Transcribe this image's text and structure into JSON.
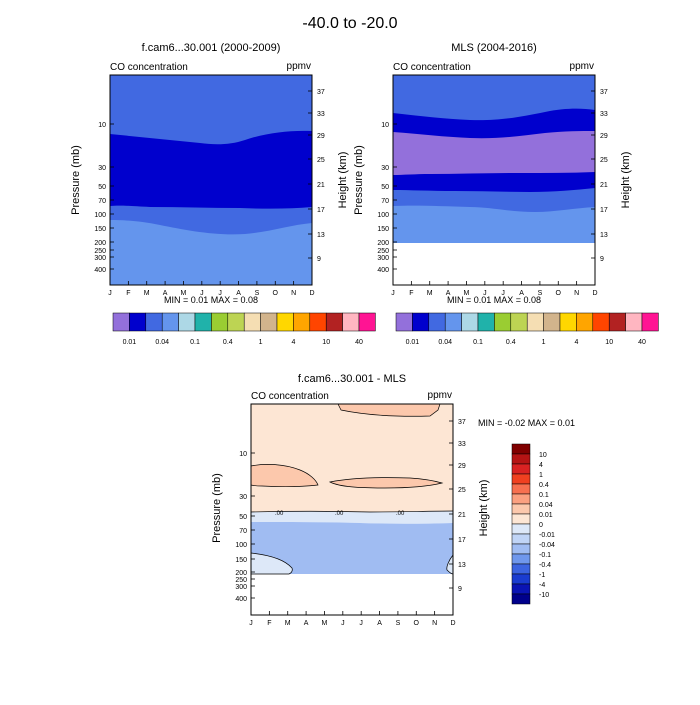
{
  "main_title": "-40.0 to -20.0",
  "chart_data": [
    {
      "type": "heatmap",
      "title": "f.cam6...30.001 (2000-2009)",
      "left_string": "CO concentration",
      "right_string": "ppmv",
      "xlabel": "",
      "ylabel": "Pressure (mb)",
      "ylabel_right": "Height (km)",
      "x_ticks": [
        "J",
        "F",
        "M",
        "A",
        "M",
        "J",
        "J",
        "A",
        "S",
        "O",
        "N",
        "D"
      ],
      "y_ticks": [
        "10",
        "30",
        "50",
        "70",
        "100",
        "150",
        "200",
        "250",
        "300",
        "400"
      ],
      "y_right_ticks": [
        "37",
        "33",
        "29",
        "25",
        "21",
        "17",
        "13",
        "9"
      ],
      "stats": "MIN =  0.01  MAX =  0.08",
      "colorbar_labels": [
        "0.01",
        "0.04",
        "0.1",
        "0.4",
        "1",
        "4",
        "10",
        "40"
      ]
    },
    {
      "type": "heatmap",
      "title": "MLS (2004-2016)",
      "left_string": "CO concentration",
      "right_string": "ppmv",
      "xlabel": "",
      "ylabel": "Pressure (mb)",
      "ylabel_right": "Height (km)",
      "x_ticks": [
        "J",
        "F",
        "M",
        "A",
        "M",
        "J",
        "J",
        "A",
        "S",
        "O",
        "N",
        "D"
      ],
      "y_ticks": [
        "10",
        "30",
        "50",
        "70",
        "100",
        "150",
        "200",
        "250",
        "300",
        "400"
      ],
      "y_right_ticks": [
        "37",
        "33",
        "29",
        "25",
        "21",
        "17",
        "13",
        "9"
      ],
      "stats": "MIN =  0.01  MAX =  0.08",
      "colorbar_labels": [
        "0.01",
        "0.04",
        "0.1",
        "0.4",
        "1",
        "4",
        "10",
        "40"
      ]
    },
    {
      "type": "heatmap",
      "title": "f.cam6...30.001 - MLS",
      "left_string": "CO concentration",
      "right_string": "ppmv",
      "xlabel": "",
      "ylabel": "Pressure (mb)",
      "ylabel_right": "Height (km)",
      "x_ticks": [
        "J",
        "F",
        "M",
        "A",
        "M",
        "J",
        "J",
        "A",
        "S",
        "O",
        "N",
        "D"
      ],
      "y_ticks": [
        "10",
        "30",
        "50",
        "70",
        "100",
        "150",
        "200",
        "250",
        "300",
        "400"
      ],
      "y_right_ticks": [
        "37",
        "33",
        "29",
        "25",
        "21",
        "17",
        "13",
        "9"
      ],
      "stats": "MIN = -0.02  MAX =   0.01",
      "contour_labels": [
        ".00",
        ".00",
        ".00"
      ],
      "colorbar_labels": [
        "10",
        "4",
        "1",
        "0.4",
        "0.1",
        "0.04",
        "0.01",
        "0",
        "-0.01",
        "-0.04",
        "-0.1",
        "-0.4",
        "-1",
        "-4",
        "-10"
      ]
    }
  ],
  "colors": {
    "field_scale": [
      "#9370db",
      "#0000cd",
      "#4169e1",
      "#6495ed",
      "#add8e6",
      "#20b2aa",
      "#9acd32",
      "#bdd453",
      "#f5deb3",
      "#d2b48c",
      "#ffd700",
      "#ffa500",
      "#ff4500",
      "#b22222",
      "#ffb6c1",
      "#ff1493"
    ],
    "diff_scale": [
      "#800000",
      "#b51414",
      "#d92222",
      "#f04020",
      "#f77050",
      "#fba080",
      "#fcc8ac",
      "#fde6d4",
      "#dde8f8",
      "#c0d4f6",
      "#a0bcf2",
      "#6f97ec",
      "#3c64e0",
      "#1a3cd0",
      "#0a14b4",
      "#00008b"
    ]
  }
}
